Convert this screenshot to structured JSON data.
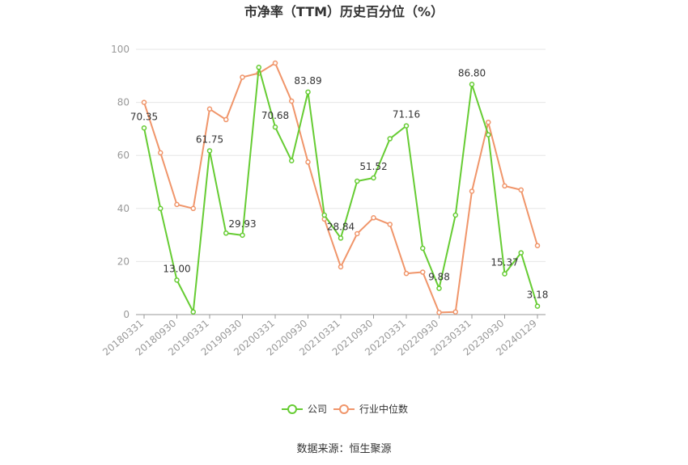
{
  "chart_data": {
    "type": "line",
    "title": "市净率（TTM）历史百分位（%）",
    "source": "数据来源：恒生聚源",
    "ylim": [
      0,
      100
    ],
    "yticks": [
      0,
      20,
      40,
      60,
      80,
      100
    ],
    "grid": true,
    "legend_position": "bottom",
    "x_tick_labels": [
      "20180331",
      "20180930",
      "20190331",
      "20190930",
      "20200331",
      "20200930",
      "20210331",
      "20210930",
      "20220331",
      "20220930",
      "20230331",
      "20230930",
      "20240129"
    ],
    "x": [
      "20180331",
      "20180630",
      "20180930",
      "20181231",
      "20190331",
      "20190630",
      "20190930",
      "20191231",
      "20200331",
      "20200630",
      "20200930",
      "20201231",
      "20210331",
      "20210630",
      "20210930",
      "20211231",
      "20220331",
      "20220630",
      "20220930",
      "20221231",
      "20230331",
      "20230630",
      "20230930",
      "20231231",
      "20240129"
    ],
    "series": [
      {
        "name": "公司",
        "color": "#66cc33",
        "values": [
          70.35,
          40.0,
          13.0,
          1.0,
          61.75,
          30.7,
          29.93,
          93.2,
          70.68,
          58.0,
          83.89,
          37.5,
          28.84,
          50.3,
          51.52,
          66.3,
          71.16,
          25.0,
          9.88,
          37.5,
          86.8,
          67.8,
          15.37,
          23.3,
          3.18
        ],
        "labels": {
          "0": "70.35",
          "2": "13.00",
          "4": "61.75",
          "6": "29.93",
          "8": "70.68",
          "10": "83.89",
          "12": "28.84",
          "14": "51.52",
          "16": "71.16",
          "18": "9.88",
          "20": "86.80",
          "22": "15.37",
          "24": "3.18"
        }
      },
      {
        "name": "行业中位数",
        "color": "#f0956a",
        "values": [
          80.0,
          61.0,
          41.5,
          40.0,
          77.5,
          73.5,
          89.5,
          91.0,
          94.8,
          80.5,
          57.5,
          36.0,
          18.0,
          30.5,
          36.5,
          34.0,
          15.5,
          16.0,
          0.8,
          1.0,
          46.5,
          72.5,
          48.5,
          47.0,
          26.0
        ]
      }
    ]
  }
}
